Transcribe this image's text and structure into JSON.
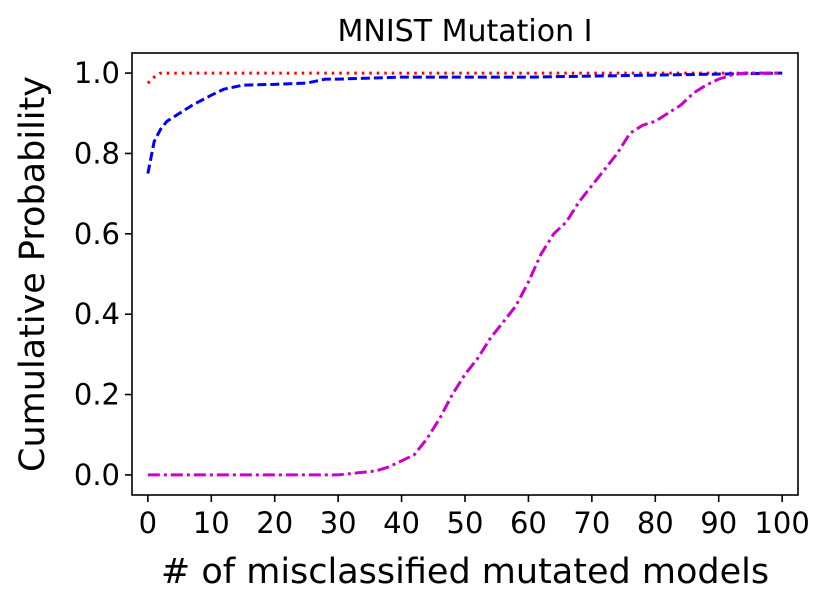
{
  "chart_data": {
    "type": "line",
    "title": "MNIST Mutation I",
    "xlabel": "# of misclassified mutated models",
    "ylabel": "Cumulative Probability",
    "xlim": [
      -2.5,
      102.5
    ],
    "ylim": [
      -0.05,
      1.05
    ],
    "grid": false,
    "x_ticks": [
      0,
      10,
      20,
      30,
      40,
      50,
      60,
      70,
      80,
      90,
      100
    ],
    "y_ticks": [
      0.0,
      0.2,
      0.4,
      0.6,
      0.8,
      1.0
    ],
    "x_tick_labels": [
      "0",
      "10",
      "20",
      "30",
      "40",
      "50",
      "60",
      "70",
      "80",
      "90",
      "100"
    ],
    "y_tick_labels": [
      "0.0",
      "0.2",
      "0.4",
      "0.6",
      "0.8",
      "1.0"
    ],
    "series": [
      {
        "name": "red-dotted",
        "color": "#ff0000",
        "style": "dotted",
        "x": [
          0,
          1,
          2,
          3,
          5,
          10,
          20,
          100
        ],
        "y": [
          0.975,
          0.99,
          1.0,
          1.0,
          1.0,
          1.0,
          1.0,
          1.0
        ]
      },
      {
        "name": "blue-dashed",
        "color": "#0000ff",
        "style": "dashed",
        "x": [
          0,
          1,
          2,
          3,
          5,
          7,
          10,
          12,
          15,
          20,
          25,
          28,
          30,
          40,
          60,
          80,
          100
        ],
        "y": [
          0.75,
          0.83,
          0.86,
          0.88,
          0.9,
          0.92,
          0.945,
          0.96,
          0.97,
          0.972,
          0.975,
          0.985,
          0.985,
          0.99,
          0.99,
          0.995,
          1.0
        ]
      },
      {
        "name": "magenta-dashdot",
        "color": "#cc00cc",
        "style": "dashdot",
        "x": [
          0,
          10,
          20,
          30,
          33,
          36,
          38,
          40,
          42,
          44,
          46,
          48,
          50,
          52,
          54,
          56,
          58,
          60,
          62,
          64,
          66,
          68,
          70,
          72,
          74,
          76,
          78,
          80,
          82,
          84,
          86,
          88,
          90,
          92,
          94,
          96,
          98,
          100
        ],
        "y": [
          0.0,
          0.0,
          0.0,
          0.0,
          0.005,
          0.01,
          0.02,
          0.035,
          0.05,
          0.09,
          0.14,
          0.2,
          0.25,
          0.29,
          0.34,
          0.38,
          0.42,
          0.48,
          0.55,
          0.6,
          0.63,
          0.68,
          0.72,
          0.76,
          0.8,
          0.85,
          0.87,
          0.88,
          0.9,
          0.92,
          0.95,
          0.97,
          0.985,
          0.995,
          1.0,
          1.0,
          1.0,
          1.0
        ]
      }
    ]
  }
}
